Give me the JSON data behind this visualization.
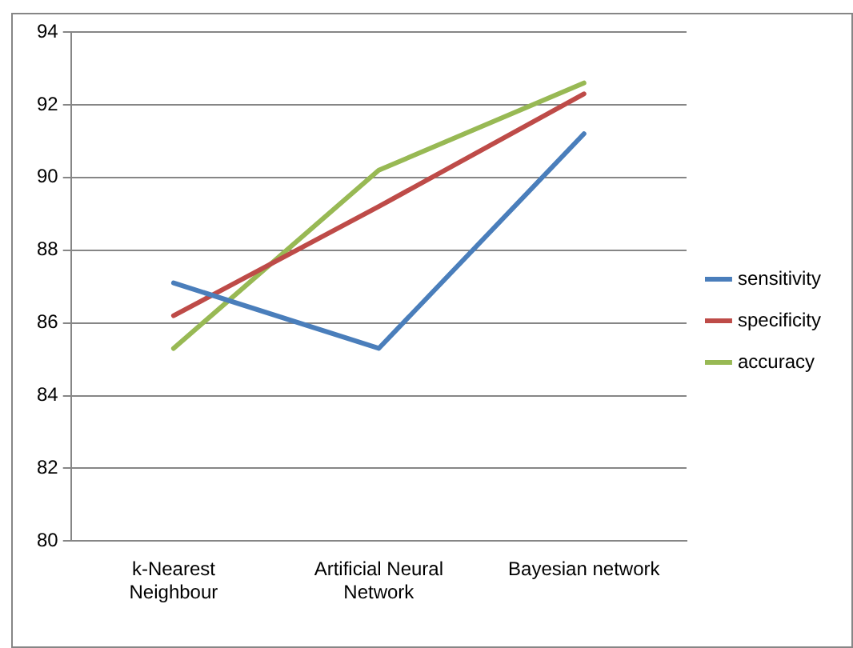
{
  "chart_data": {
    "type": "line",
    "categories": [
      "k-Nearest Neighbour",
      "Artificial Neural Network",
      "Bayesian network"
    ],
    "series": [
      {
        "name": "sensitivity",
        "color": "#4a7ebb",
        "values": [
          87.1,
          85.3,
          91.2
        ]
      },
      {
        "name": "specificity",
        "color": "#be4b48",
        "values": [
          86.2,
          89.2,
          92.3
        ]
      },
      {
        "name": "accuracy",
        "color": "#98b954",
        "values": [
          85.3,
          90.2,
          92.6
        ]
      }
    ],
    "ylim": [
      80,
      94
    ],
    "yticks": [
      80,
      82,
      84,
      86,
      88,
      90,
      92,
      94
    ],
    "grid": "y",
    "legend": "right",
    "marker": "none",
    "line_style": "solid"
  }
}
